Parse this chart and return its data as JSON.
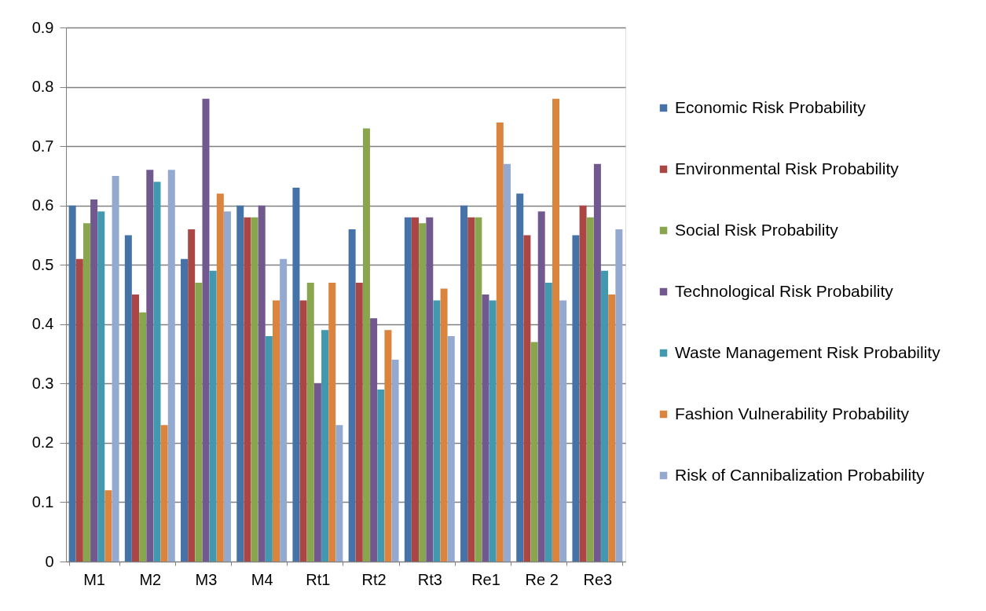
{
  "chart_data": {
    "type": "bar",
    "categories": [
      "M1",
      "M2",
      "M3",
      "M4",
      "Rt1",
      "Rt2",
      "Rt3",
      "Re1",
      "Re 2",
      "Re3"
    ],
    "series": [
      {
        "name": "Economic Risk Probability",
        "color": "#4572a7",
        "values": [
          0.6,
          0.55,
          0.51,
          0.6,
          0.63,
          0.56,
          0.58,
          0.6,
          0.62,
          0.55
        ]
      },
      {
        "name": "Environmental Risk Probability",
        "color": "#aa4643",
        "values": [
          0.51,
          0.45,
          0.56,
          0.58,
          0.44,
          0.47,
          0.58,
          0.58,
          0.55,
          0.6
        ]
      },
      {
        "name": "Social Risk Probability",
        "color": "#89a54e",
        "values": [
          0.57,
          0.42,
          0.47,
          0.58,
          0.47,
          0.73,
          0.57,
          0.58,
          0.37,
          0.58
        ]
      },
      {
        "name": "Technological Risk Probability",
        "color": "#71588f",
        "values": [
          0.61,
          0.66,
          0.78,
          0.6,
          0.3,
          0.41,
          0.58,
          0.45,
          0.59,
          0.67
        ]
      },
      {
        "name": "Waste Management Risk Probability",
        "color": "#4198af",
        "values": [
          0.59,
          0.64,
          0.49,
          0.38,
          0.39,
          0.29,
          0.44,
          0.44,
          0.47,
          0.49
        ]
      },
      {
        "name": "Fashion Vulnerability Probability",
        "color": "#db843d",
        "values": [
          0.12,
          0.23,
          0.62,
          0.44,
          0.47,
          0.39,
          0.46,
          0.74,
          0.78,
          0.45
        ]
      },
      {
        "name": "Risk of Cannibalization Probability",
        "color": "#93a9cf",
        "values": [
          0.65,
          0.66,
          0.59,
          0.51,
          0.23,
          0.34,
          0.38,
          0.67,
          0.44,
          0.56
        ]
      }
    ],
    "ylim": [
      0,
      0.9
    ],
    "yticks": [
      0,
      0.1,
      0.2,
      0.3,
      0.4,
      0.5,
      0.6,
      0.7,
      0.8,
      0.9
    ],
    "grid": "y",
    "legend": "right"
  }
}
